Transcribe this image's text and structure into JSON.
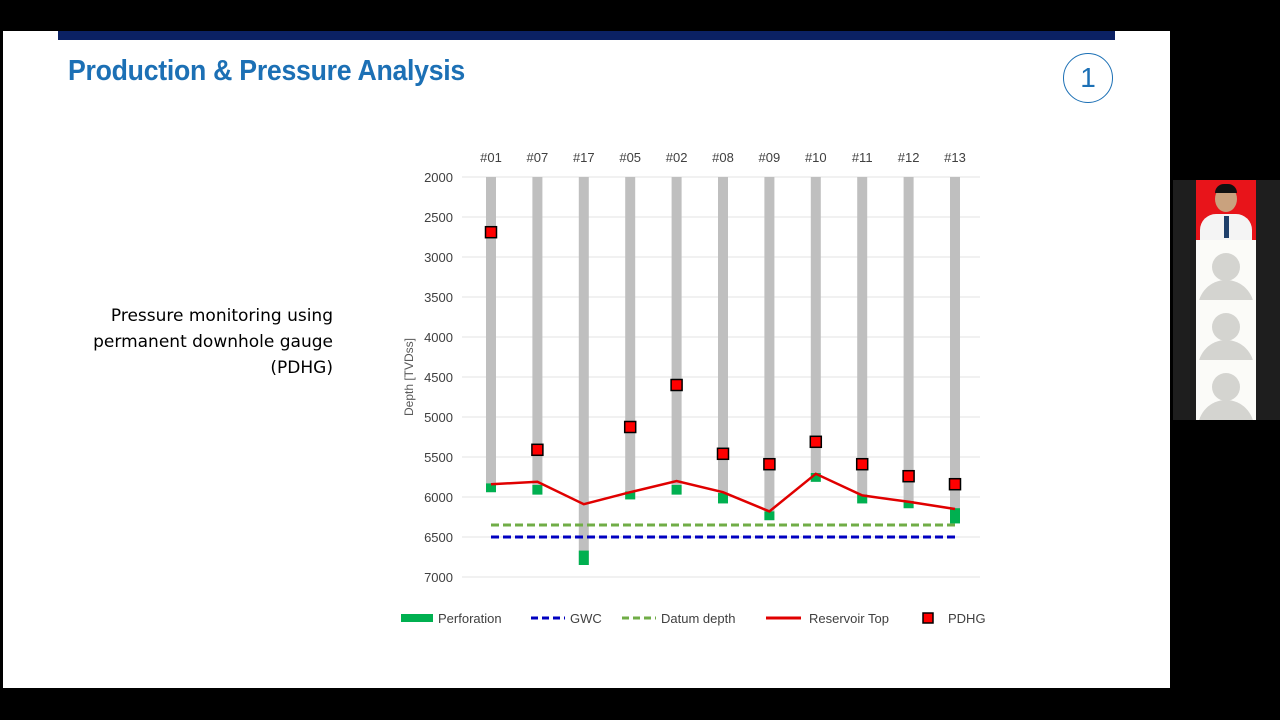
{
  "slide": {
    "title": "Production & Pressure Analysis",
    "page_number": "1",
    "description_lines": [
      "Pressure monitoring using",
      "permanent downhole gauge",
      "(PDHG)"
    ]
  },
  "colors": {
    "title": "#1c70b5",
    "header_bar": "#0b2163",
    "well": "#bfbfbf",
    "perforation": "#00b050",
    "gwc": "#0000c0",
    "datum": "#70ad47",
    "reservoir_top": "#e00000",
    "pdhg": "#ff0000"
  },
  "participants": [
    {
      "type": "video",
      "name_icon": "user-video"
    },
    {
      "type": "avatar"
    },
    {
      "type": "avatar"
    },
    {
      "type": "avatar"
    }
  ],
  "chart_data": {
    "type": "scatter",
    "title": "",
    "ylabel": "Depth [TVDss]",
    "ylim": [
      2000,
      7000
    ],
    "y_inverted": true,
    "yticks": [
      "2000",
      "2500",
      "3000",
      "3500",
      "4000",
      "4500",
      "5000",
      "5500",
      "6000",
      "6500",
      "7000"
    ],
    "grid": true,
    "legend_placement": "bottom",
    "categories": [
      "#01",
      "#07",
      "#17",
      "#05",
      "#02",
      "#08",
      "#09",
      "#10",
      "#11",
      "#12",
      "#13"
    ],
    "well_bottom": [
      5940,
      5970,
      6850,
      6030,
      5970,
      6080,
      6290,
      5810,
      6080,
      6140,
      6330
    ],
    "perforation": [
      [
        5830,
        5940
      ],
      [
        5850,
        5970
      ],
      [
        6670,
        6850
      ],
      [
        5930,
        6030
      ],
      [
        5850,
        5970
      ],
      [
        5950,
        6080
      ],
      [
        6180,
        6290
      ],
      [
        5700,
        5810
      ],
      [
        5970,
        6080
      ],
      [
        6050,
        6140
      ],
      [
        6140,
        6330
      ]
    ],
    "reservoir_top": [
      5840,
      5810,
      6090,
      5940,
      5800,
      5940,
      6180,
      5710,
      5980,
      6060,
      6150
    ],
    "pdhg": [
      2690,
      5410,
      null,
      5125,
      4600,
      5460,
      5590,
      5310,
      5590,
      5740,
      5840
    ],
    "gwc": 6500,
    "datum_depth": 6350,
    "legend": [
      "Perforation",
      "GWC",
      "Datum depth",
      "Reservoir Top",
      "PDHG"
    ]
  }
}
